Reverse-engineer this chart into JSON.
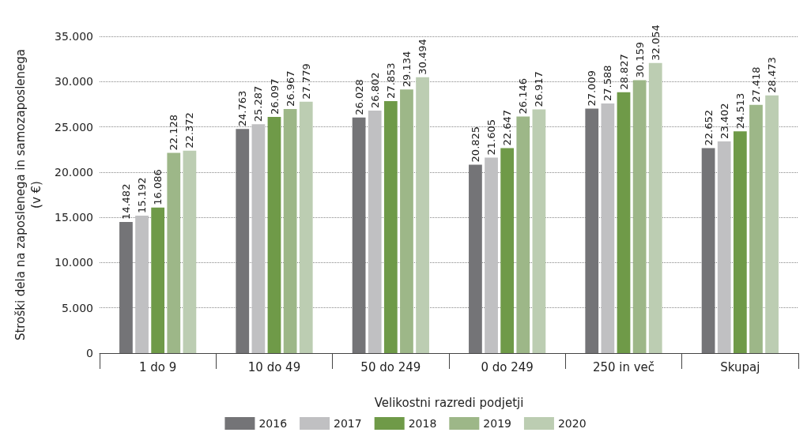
{
  "chart_data": {
    "type": "bar",
    "xlabel": "Velikostni razredi podjetji",
    "ylabel": "Stroški dela na zaposlenega in samozaposlenega\n(v €)",
    "categories": [
      "1 do 9",
      "10 do 49",
      "50 do 249",
      "0 do 249",
      "250 in več",
      "Skupaj"
    ],
    "series": [
      {
        "name": "2016",
        "color": "#747477",
        "values": [
          14482,
          24763,
          26028,
          20825,
          27009,
          22652
        ],
        "value_labels": [
          "14.482",
          "24.763",
          "26.028",
          "20.825",
          "27.009",
          "22.652"
        ]
      },
      {
        "name": "2017",
        "color": "#c0c0c2",
        "values": [
          15192,
          25287,
          26802,
          21605,
          27588,
          23402
        ],
        "value_labels": [
          "15.192",
          "25.287",
          "26.802",
          "21.605",
          "27.588",
          "23.402"
        ]
      },
      {
        "name": "2018",
        "color": "#6f9a48",
        "values": [
          16086,
          26097,
          27853,
          22647,
          28827,
          24513
        ],
        "value_labels": [
          "16.086",
          "26.097",
          "27.853",
          "22.647",
          "28.827",
          "24.513"
        ]
      },
      {
        "name": "2019",
        "color": "#9db788",
        "values": [
          22128,
          26967,
          29134,
          26146,
          30159,
          27418
        ],
        "value_labels": [
          "22.128",
          "26.967",
          "29.134",
          "26.146",
          "30.159",
          "27.418"
        ]
      },
      {
        "name": "2020",
        "color": "#bccdb2",
        "values": [
          22372,
          27779,
          30494,
          26917,
          32054,
          28473
        ],
        "value_labels": [
          "22.372",
          "27.779",
          "30.494",
          "26.917",
          "32.054",
          "28.473"
        ]
      }
    ],
    "ylim": [
      0,
      35000
    ],
    "yticks": [
      {
        "value": 0,
        "label": "0"
      },
      {
        "value": 5000,
        "label": "5.000"
      },
      {
        "value": 10000,
        "label": "10.000"
      },
      {
        "value": 15000,
        "label": "15.000"
      },
      {
        "value": 20000,
        "label": "20.000"
      },
      {
        "value": 25000,
        "label": "25.000"
      },
      {
        "value": 30000,
        "label": "30.000"
      },
      {
        "value": 35000,
        "label": "35.000"
      }
    ],
    "grid": "y",
    "legend": "bottom"
  }
}
